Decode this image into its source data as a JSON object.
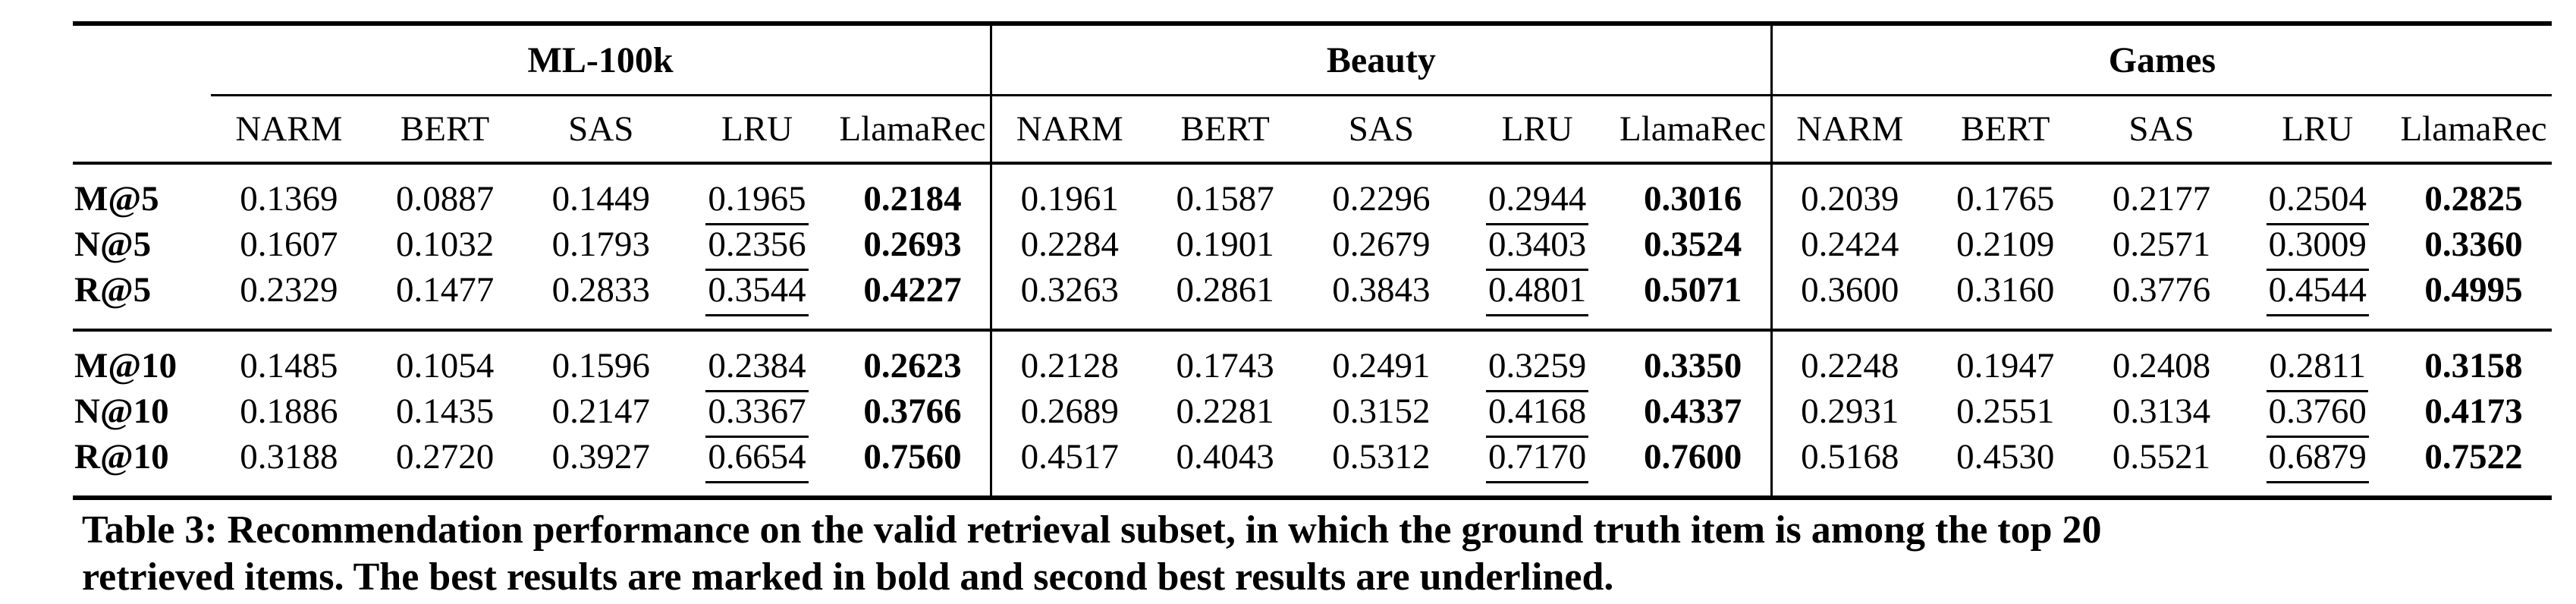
{
  "colors": {
    "background": "#ffffff",
    "text": "#000000",
    "rules": "#000000"
  },
  "table": {
    "groups": [
      {
        "name": "ML-100k"
      },
      {
        "name": "Beauty"
      },
      {
        "name": "Games"
      }
    ],
    "method_headers": [
      "NARM",
      "BERT",
      "SAS",
      "LRU",
      "LlamaRec"
    ],
    "emphasis": {
      "bold_method": "LlamaRec",
      "underline_method": "LRU",
      "bold_col_index_in_group": 4,
      "underline_col_index_in_group": 3
    },
    "blocks": [
      {
        "rows": [
          {
            "label": "M@5",
            "values": [
              "0.1369",
              "0.0887",
              "0.1449",
              "0.1965",
              "0.2184",
              "0.1961",
              "0.1587",
              "0.2296",
              "0.2944",
              "0.3016",
              "0.2039",
              "0.1765",
              "0.2177",
              "0.2504",
              "0.2825"
            ]
          },
          {
            "label": "N@5",
            "values": [
              "0.1607",
              "0.1032",
              "0.1793",
              "0.2356",
              "0.2693",
              "0.2284",
              "0.1901",
              "0.2679",
              "0.3403",
              "0.3524",
              "0.2424",
              "0.2109",
              "0.2571",
              "0.3009",
              "0.3360"
            ]
          },
          {
            "label": "R@5",
            "values": [
              "0.2329",
              "0.1477",
              "0.2833",
              "0.3544",
              "0.4227",
              "0.3263",
              "0.2861",
              "0.3843",
              "0.4801",
              "0.5071",
              "0.3600",
              "0.3160",
              "0.3776",
              "0.4544",
              "0.4995"
            ]
          }
        ]
      },
      {
        "rows": [
          {
            "label": "M@10",
            "values": [
              "0.1485",
              "0.1054",
              "0.1596",
              "0.2384",
              "0.2623",
              "0.2128",
              "0.1743",
              "0.2491",
              "0.3259",
              "0.3350",
              "0.2248",
              "0.1947",
              "0.2408",
              "0.2811",
              "0.3158"
            ]
          },
          {
            "label": "N@10",
            "values": [
              "0.1886",
              "0.1435",
              "0.2147",
              "0.3367",
              "0.3766",
              "0.2689",
              "0.2281",
              "0.3152",
              "0.4168",
              "0.4337",
              "0.2931",
              "0.2551",
              "0.3134",
              "0.3760",
              "0.4173"
            ]
          },
          {
            "label": "R@10",
            "values": [
              "0.3188",
              "0.2720",
              "0.3927",
              "0.6654",
              "0.7560",
              "0.4517",
              "0.4043",
              "0.5312",
              "0.7170",
              "0.7600",
              "0.5168",
              "0.4530",
              "0.5521",
              "0.6879",
              "0.7522"
            ]
          }
        ]
      }
    ]
  },
  "caption": {
    "lines": [
      "Table 3: Recommendation performance on the valid retrieval subset, in which the ground truth item is among the top 20",
      "retrieved items. The best results are marked in bold and second best results are underlined."
    ]
  }
}
